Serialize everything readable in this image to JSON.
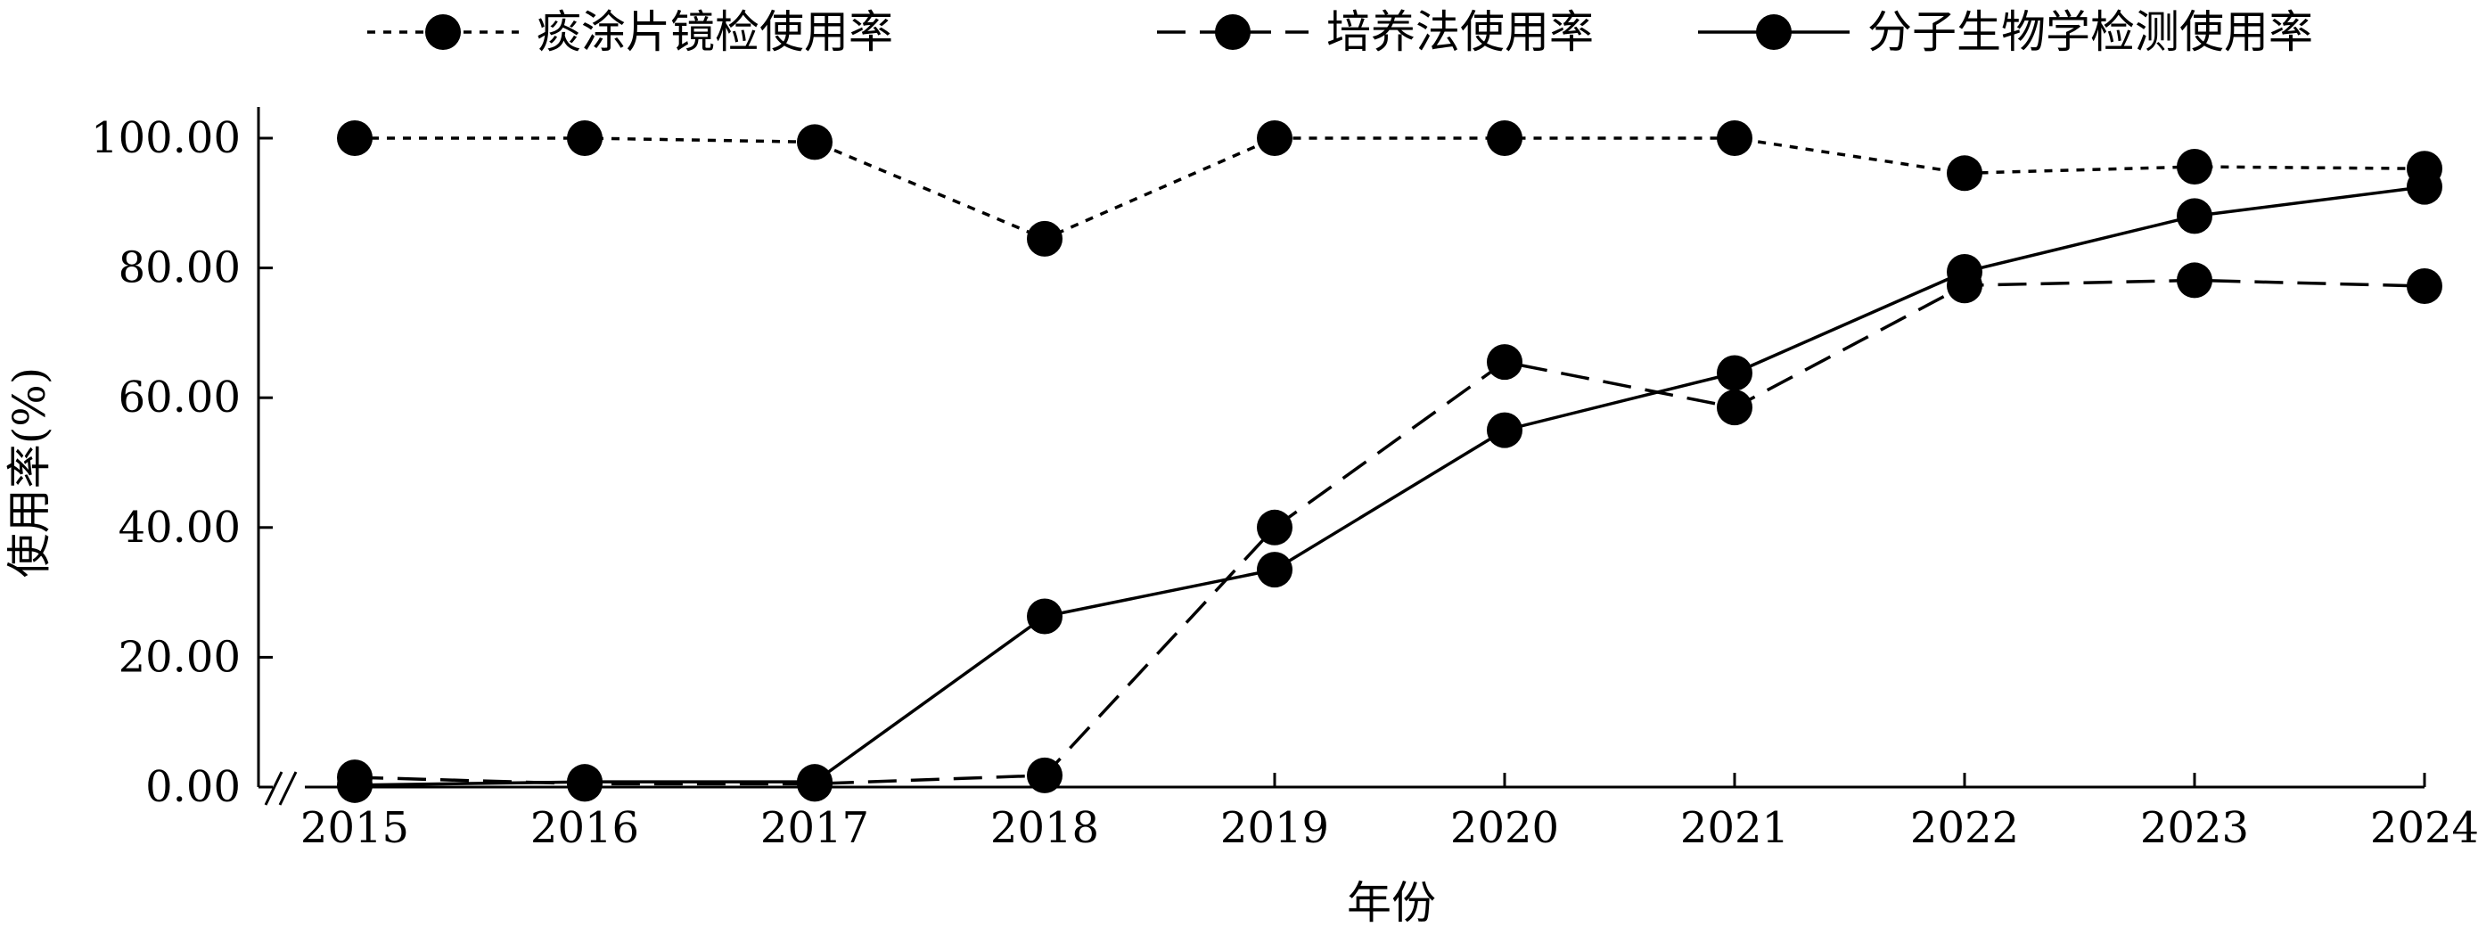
{
  "chart_data": {
    "type": "line",
    "xlabel": "年份",
    "ylabel": "使用率(%)",
    "ylim": [
      0,
      100
    ],
    "yticks": [
      "0.00",
      "20.00",
      "40.00",
      "60.00",
      "80.00",
      "100.00"
    ],
    "y_axis_break": true,
    "grid": false,
    "legend_position": "top",
    "categories": [
      "2015",
      "2016",
      "2017",
      "2018",
      "2019",
      "2020",
      "2021",
      "2022",
      "2023",
      "2024"
    ],
    "series": [
      {
        "name": "痰涂片镜检使用率",
        "line_style": "dotted",
        "values": [
          100.0,
          100.0,
          99.4,
          84.5,
          100.0,
          100.0,
          100.0,
          94.6,
          95.6,
          95.3
        ]
      },
      {
        "name": "培养法使用率",
        "line_style": "dashed",
        "values": [
          1.5,
          0.5,
          0.5,
          1.8,
          40.0,
          65.5,
          58.5,
          77.3,
          78.1,
          77.2
        ]
      },
      {
        "name": "分子生物学检测使用率",
        "line_style": "solid",
        "values": [
          0.3,
          0.8,
          0.8,
          26.3,
          33.5,
          55.0,
          63.8,
          79.4,
          88.0,
          92.5
        ]
      }
    ]
  }
}
